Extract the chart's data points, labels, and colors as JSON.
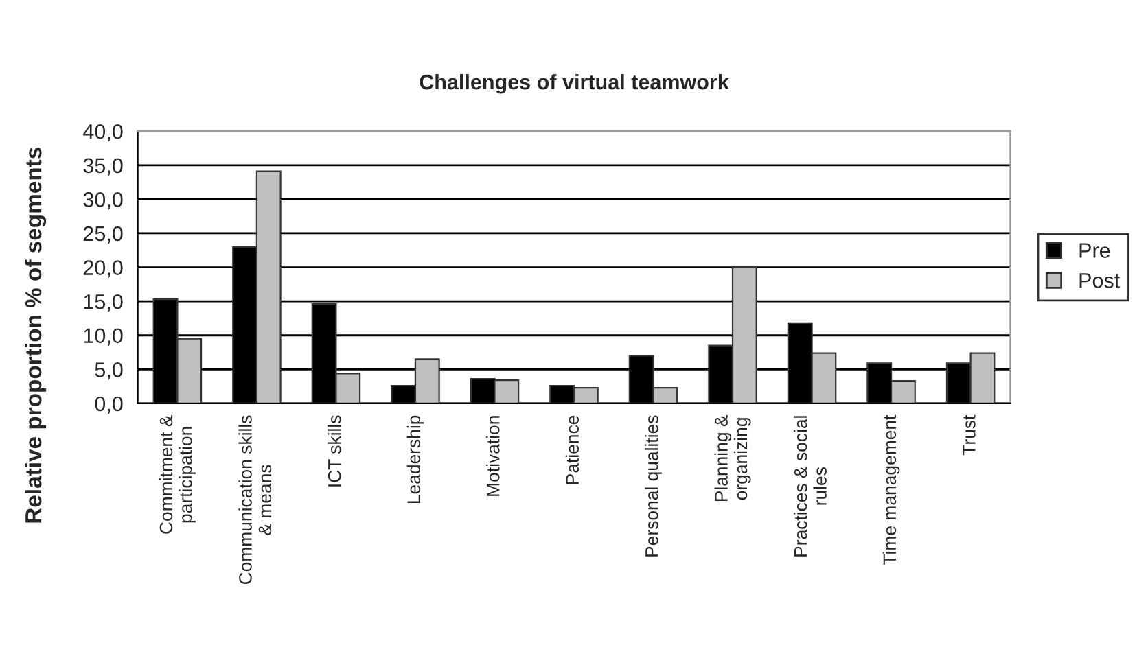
{
  "chart_data": {
    "type": "bar",
    "title": "Challenges of virtual teamwork",
    "ylabel": "Relative proportion % of segments",
    "categories": [
      "Commitment &\nparticipation",
      "Communication skills\n& means",
      "ICT skills",
      "Leadership",
      "Motivation",
      "Patience",
      "Personal qualities",
      "Planning &\norganizing",
      "Practices & social\nrules",
      "Time management",
      "Trust"
    ],
    "series": [
      {
        "name": "Pre",
        "color": "#000000",
        "values": [
          15.3,
          23.0,
          14.6,
          2.6,
          3.6,
          2.6,
          7.0,
          8.5,
          11.8,
          5.9,
          5.9
        ]
      },
      {
        "name": "Post",
        "color": "#c0c0c0",
        "values": [
          9.5,
          34.1,
          4.4,
          6.5,
          3.4,
          2.3,
          2.3,
          20.0,
          7.4,
          3.3,
          7.4
        ]
      }
    ],
    "ylim": [
      0,
      40
    ],
    "yticks": [
      {
        "value": 0,
        "label": "0,0"
      },
      {
        "value": 5,
        "label": "5,0"
      },
      {
        "value": 10,
        "label": "10,0"
      },
      {
        "value": 15,
        "label": "15,0"
      },
      {
        "value": 20,
        "label": "20,0"
      },
      {
        "value": 25,
        "label": "25,0"
      },
      {
        "value": 30,
        "label": "30,0"
      },
      {
        "value": 35,
        "label": "35,0"
      },
      {
        "value": 40,
        "label": "40,0"
      }
    ],
    "grid": "y",
    "legend": "right"
  }
}
